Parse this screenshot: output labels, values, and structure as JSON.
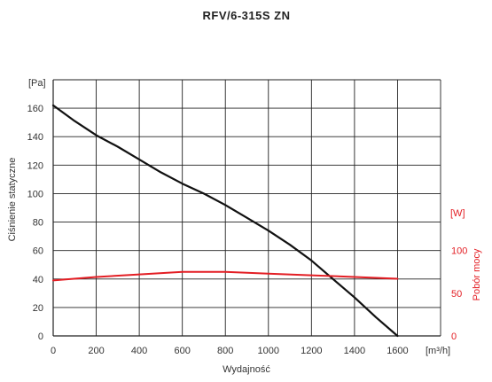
{
  "chart_data": {
    "type": "line",
    "title": "RFV/6-315S ZN",
    "xlabel": "Wydajność",
    "x_unit": "[m³/h]",
    "ylabel": "Ciśnienie statyczne",
    "y_unit": "[Pa]",
    "y2label": "Pobór mocy",
    "y2_unit": "[W]",
    "xlim": [
      0,
      1600
    ],
    "ylim": [
      0,
      160
    ],
    "y2lim": [
      0,
      100
    ],
    "x_ticks": [
      "0",
      "200",
      "400",
      "600",
      "800",
      "1000",
      "1200",
      "1400",
      "1600"
    ],
    "y_ticks": [
      "0",
      "20",
      "40",
      "60",
      "80",
      "100",
      "120",
      "140",
      "160"
    ],
    "y2_ticks": [
      "0",
      "50",
      "100"
    ],
    "grid": true,
    "colors": {
      "pressure": "#111111",
      "power": "#e31e24",
      "grid": "#222222"
    },
    "series": [
      {
        "axis": "left",
        "x": [
          0,
          100,
          200,
          300,
          400,
          500,
          600,
          700,
          800,
          900,
          1000,
          1100,
          1200,
          1300,
          1400,
          1500,
          1600
        ],
        "y": [
          162,
          151,
          141,
          133,
          124,
          115,
          107,
          100,
          92,
          83,
          74,
          64,
          53,
          40,
          27,
          13,
          0
        ]
      },
      {
        "axis": "right",
        "x": [
          0,
          200,
          400,
          600,
          700,
          800,
          1000,
          1200,
          1400,
          1600
        ],
        "y": [
          65,
          69,
          72,
          75,
          75,
          75,
          73,
          71,
          69,
          67
        ]
      }
    ]
  }
}
